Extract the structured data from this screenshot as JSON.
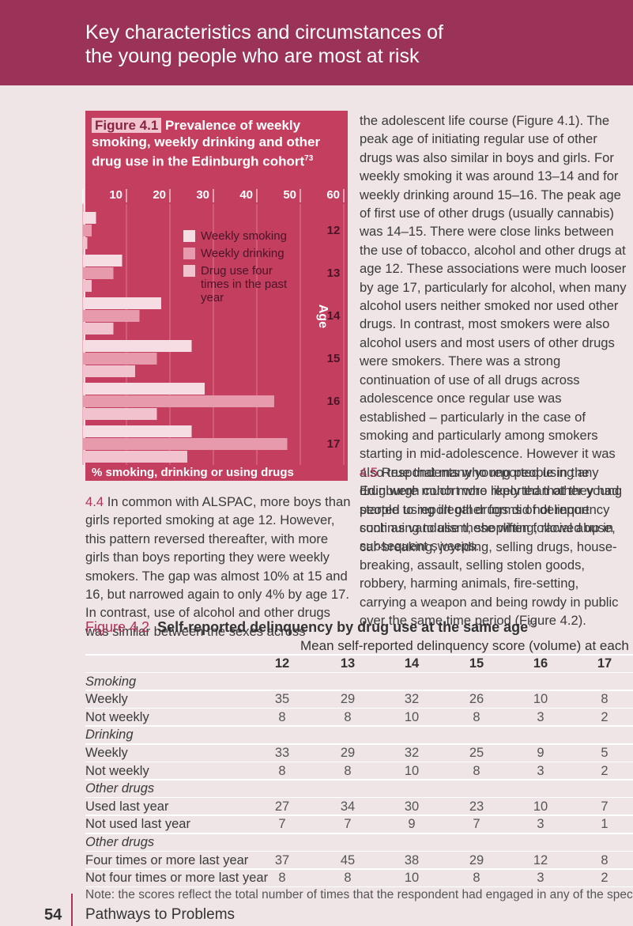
{
  "header": {
    "title_lines": [
      "Key characteristics and circumstances of",
      "the young people who are most at risk"
    ]
  },
  "chart_data": {
    "type": "bar",
    "orientation": "horizontal",
    "label": "Figure 4.1",
    "title": "Prevalence of weekly smoking, weekly drinking and other drug use in the Edinburgh cohort",
    "title_ref": "73",
    "categories": [
      "12",
      "13",
      "14",
      "15",
      "16",
      "17"
    ],
    "category_axis_label": "Age",
    "x_label": "% smoking, drinking or using drugs",
    "xlim": [
      0,
      60
    ],
    "xticks": [
      0,
      10,
      20,
      30,
      40,
      50,
      60
    ],
    "grid": true,
    "series": [
      {
        "name": "Weekly smoking",
        "color": "#f6dde3",
        "values": [
          3,
          9,
          18,
          25,
          28,
          25
        ]
      },
      {
        "name": "Weekly drinking",
        "color": "#e79aac",
        "values": [
          2,
          7,
          13,
          17,
          44,
          47
        ]
      },
      {
        "name": "Drug use four times in the past year",
        "color": "#f0c3ce",
        "values": [
          1,
          2,
          7,
          12,
          17,
          24
        ]
      }
    ]
  },
  "paragraphs": {
    "continued": "the adolescent life course (Figure 4.1). The peak age of initiating regular use of other drugs was also similar in boys and girls. For weekly smoking it was around 13–14 and for weekly drinking around 15–16. The peak age of first use of other drugs (usually cannabis) was 14–15. There were close links between the use of tobacco, alcohol and other drugs at age 12. These associations were much looser by age 17, particularly for alcohol, when many alcohol users neither smoked nor used other drugs. In contrast, most smokers were also alcohol users and most users of other drugs were smokers. There was a strong continuation of use of all drugs across adolescence once regular use was established – particularly in the case of smoking and particularly among smokers starting in mid-adolescence. However it was also true that many young people in the Edinburgh cohort who reported that they had started using illegal drugs did not report continuing to use these when followed up in subsequent sweeps.",
    "p44": {
      "number": "4.4",
      "text": "In common with ALSPAC, more boys than girls reported smoking at age 12. However, this pattern reversed thereafter, with more girls than boys reporting they were weekly smokers. The gap was almost 10% at 15 and 16, but narrowed again to only 4% by age 17. In contrast, use of alcohol and other drugs was similar between the sexes across"
    },
    "p45": {
      "number": "4.5",
      "text": "Respondents who reported using any drug were much more likely than other young people to report other forms of delinquency such as vandalism, shoplifting, racial abuse, car-breaking, joyriding, selling drugs, house-breaking, assault, selling stolen goods, robbery, harming animals, fire-setting, carrying a weapon and being rowdy in public over the same time period (Figure 4.2)."
    }
  },
  "table": {
    "label": "Figure 4.2",
    "title": "Self-reported delinquency by drug use at the same age",
    "title_ref": "73",
    "column_group": "Mean self-reported delinquency score (volume) at each age",
    "columns": [
      "12",
      "13",
      "14",
      "15",
      "16",
      "17"
    ],
    "sections": [
      {
        "heading": "Smoking",
        "rows": [
          {
            "label": "Weekly",
            "values": [
              35,
              29,
              32,
              26,
              10,
              8
            ]
          },
          {
            "label": "Not weekly",
            "values": [
              8,
              8,
              10,
              8,
              3,
              2
            ]
          }
        ]
      },
      {
        "heading": "Drinking",
        "rows": [
          {
            "label": "Weekly",
            "values": [
              33,
              29,
              32,
              25,
              9,
              5
            ]
          },
          {
            "label": "Not weekly",
            "values": [
              8,
              8,
              10,
              8,
              3,
              2
            ]
          }
        ]
      },
      {
        "heading": "Other drugs",
        "rows": [
          {
            "label": "Used last year",
            "values": [
              27,
              34,
              30,
              23,
              10,
              7
            ]
          },
          {
            "label": "Not used last year",
            "values": [
              7,
              7,
              9,
              7,
              3,
              1
            ]
          }
        ]
      },
      {
        "heading": "Other drugs",
        "rows": [
          {
            "label": "Four times or more last year",
            "values": [
              37,
              45,
              38,
              29,
              12,
              8
            ]
          },
          {
            "label": "Not four times or more last year",
            "values": [
              8,
              8,
              10,
              8,
              3,
              2
            ]
          }
        ]
      }
    ],
    "note": "Note: the scores reflect the total number of times that the respondent had engaged in any of the specified delinquent acts."
  },
  "footer": {
    "page": "54",
    "title": "Pathways to Problems"
  }
}
